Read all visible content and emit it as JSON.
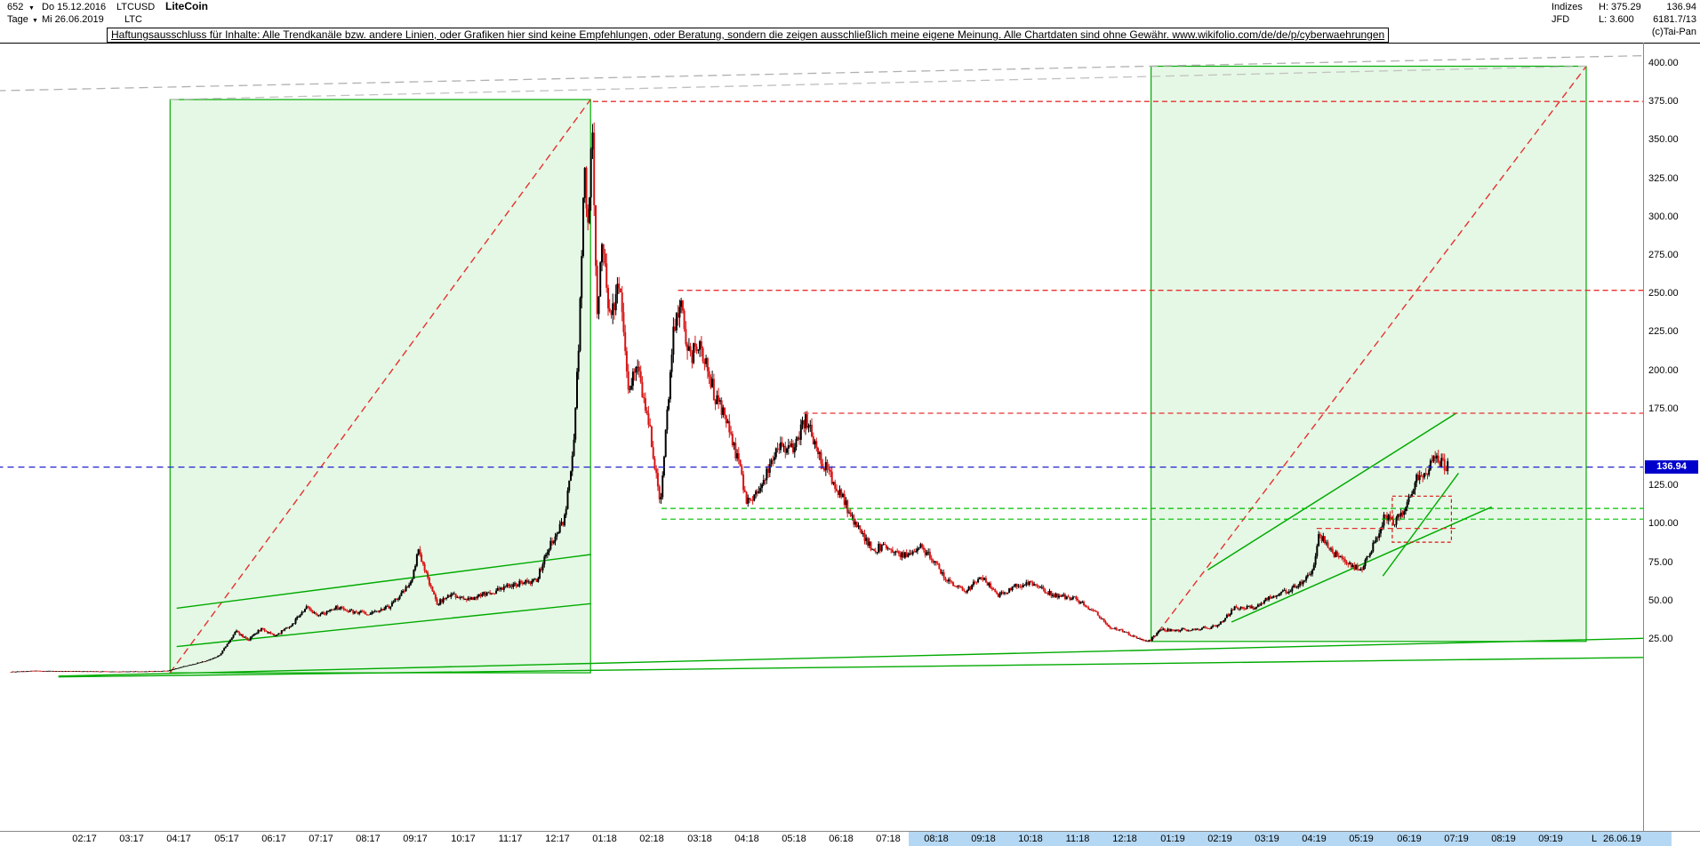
{
  "header": {
    "bar_count": "652",
    "dropdown_icon": "▼",
    "start_date": "Do 15.12.2016",
    "symbol": "LTCUSD",
    "name": "LiteCoin",
    "timeframe": "Tage",
    "end_date": "Mi 26.06.2019",
    "short_symbol": "LTC",
    "right": {
      "indices_label": "Indizes",
      "high_label": "H: 375.29",
      "last_value": "136.94",
      "provider": "JFD",
      "low_label": "L: 3.600",
      "volume_info": "6181.7/13",
      "copyright": "(c)Tai-Pan"
    }
  },
  "disclaimer": "Haftungsausschluss für Inhalte: Alle Trendkanäle bzw. andere Linien, oder Grafiken hier sind keine Empfehlungen, oder Beratung, sondern die zeigen ausschließlich meine eigene Meinung. Alle Chartdaten sind ohne Gewähr.  www.wikifolio.com/de/de/p/cyberwaehrungen",
  "axis": {
    "price_labels": [
      "400.00",
      "375.00",
      "350.00",
      "325.00",
      "300.00",
      "275.00",
      "250.00",
      "225.00",
      "200.00",
      "175.00",
      "125.00",
      "100.00",
      "75.00",
      "50.00",
      "25.00"
    ],
    "last_price_label": "136.94",
    "month_labels": [
      "02:17",
      "03:17",
      "04:17",
      "05:17",
      "06:17",
      "07:17",
      "08:17",
      "09:17",
      "10:17",
      "11:17",
      "12:17",
      "01:18",
      "02:18",
      "03:18",
      "04:18",
      "05:18",
      "06:18",
      "07:18",
      "08:18",
      "09:18",
      "10:18",
      "11:18",
      "12:18",
      "01:19",
      "02:19",
      "03:19",
      "04:19",
      "05:19",
      "06:19",
      "07:19",
      "08:19",
      "09:19"
    ],
    "last_marker": "L",
    "last_date": "26.06.19"
  },
  "chart_data": {
    "type": "candlestick",
    "title": "LiteCoin (LTCUSD) Tageschart",
    "symbol": "LTCUSD",
    "name": "LiteCoin",
    "timeframe": "Tage",
    "x_start": "2016-12-15",
    "x_end": "2019-06-26",
    "months_total": 30.37,
    "last": 136.94,
    "high": 375.29,
    "low": 3.6,
    "ylim": [
      0,
      400
    ],
    "price_gridstep": 25,
    "up_color": "#000000",
    "down_color": "#d81414",
    "anchors": [
      [
        0,
        3.6
      ],
      [
        0.5,
        4.3
      ],
      [
        1,
        4
      ],
      [
        1.6,
        3.9
      ],
      [
        2.2,
        3.8
      ],
      [
        2.8,
        3.9
      ],
      [
        3.3,
        4.2
      ],
      [
        3.7,
        7.5
      ],
      [
        4.1,
        10.5
      ],
      [
        4.4,
        14
      ],
      [
        4.75,
        30
      ],
      [
        5,
        24
      ],
      [
        5.3,
        32
      ],
      [
        5.55,
        27
      ],
      [
        5.9,
        33
      ],
      [
        6.25,
        46
      ],
      [
        6.5,
        40
      ],
      [
        6.85,
        46
      ],
      [
        7.2,
        43
      ],
      [
        7.6,
        41
      ],
      [
        8,
        46
      ],
      [
        8.45,
        62
      ],
      [
        8.6,
        82
      ],
      [
        8.75,
        70
      ],
      [
        9,
        48
      ],
      [
        9.3,
        54
      ],
      [
        9.7,
        51
      ],
      [
        10.2,
        56
      ],
      [
        10.7,
        61
      ],
      [
        11.1,
        63
      ],
      [
        11.45,
        90
      ],
      [
        11.7,
        103
      ],
      [
        11.9,
        152
      ],
      [
        12.02,
        235
      ],
      [
        12.12,
        330
      ],
      [
        12.2,
        290
      ],
      [
        12.28,
        362
      ],
      [
        12.38,
        235
      ],
      [
        12.5,
        282
      ],
      [
        12.65,
        232
      ],
      [
        12.85,
        255
      ],
      [
        13.05,
        188
      ],
      [
        13.25,
        200
      ],
      [
        13.5,
        162
      ],
      [
        13.72,
        112
      ],
      [
        14,
        222
      ],
      [
        14.15,
        244
      ],
      [
        14.35,
        208
      ],
      [
        14.55,
        218
      ],
      [
        14.85,
        186
      ],
      [
        15.2,
        162
      ],
      [
        15.55,
        116
      ],
      [
        15.85,
        122
      ],
      [
        16.2,
        150
      ],
      [
        16.5,
        148
      ],
      [
        16.8,
        168
      ],
      [
        17.05,
        146
      ],
      [
        17.5,
        121
      ],
      [
        17.8,
        103
      ],
      [
        18.2,
        83
      ],
      [
        18.5,
        86
      ],
      [
        18.85,
        79
      ],
      [
        19.2,
        86
      ],
      [
        19.55,
        74
      ],
      [
        19.85,
        61
      ],
      [
        20.2,
        56
      ],
      [
        20.5,
        66
      ],
      [
        20.85,
        53
      ],
      [
        21.2,
        59
      ],
      [
        21.55,
        61
      ],
      [
        22,
        54
      ],
      [
        22.5,
        51
      ],
      [
        22.9,
        43
      ],
      [
        23.2,
        33
      ],
      [
        23.5,
        30
      ],
      [
        23.85,
        25
      ],
      [
        24.05,
        23.5
      ],
      [
        24.3,
        31
      ],
      [
        24.6,
        30.5
      ],
      [
        25,
        31.5
      ],
      [
        25.5,
        33
      ],
      [
        25.85,
        45
      ],
      [
        26.3,
        45.5
      ],
      [
        26.65,
        53
      ],
      [
        27,
        56
      ],
      [
        27.5,
        67
      ],
      [
        27.65,
        93
      ],
      [
        27.95,
        81
      ],
      [
        28.25,
        74
      ],
      [
        28.55,
        70
      ],
      [
        28.85,
        89
      ],
      [
        29.05,
        106
      ],
      [
        29.25,
        101
      ],
      [
        29.5,
        112
      ],
      [
        29.7,
        130
      ],
      [
        29.9,
        134
      ],
      [
        30.1,
        141
      ],
      [
        30.37,
        136.94
      ]
    ],
    "overlays": {
      "boxes": [
        {
          "name": "cycle-box-2017",
          "z": "back",
          "t1": 3.36,
          "p1": 3.0,
          "t2": 12.25,
          "p2": 376.3,
          "color": "#00aa00",
          "fill": "rgba(0,190,0,0.10)",
          "w": 1.2
        },
        {
          "name": "cycle-box-2019",
          "z": "back",
          "t1": 24.1,
          "p1": 23.4,
          "t2": 33.3,
          "p2": 398.0,
          "color": "#00aa00",
          "fill": "rgba(0,190,0,0.10)",
          "w": 1.2
        },
        {
          "name": "consolidation-box-2019",
          "z": "front",
          "t1": 29.2,
          "p1": 88,
          "t2": 30.45,
          "p2": 118,
          "color": "#d81414",
          "fill": "none",
          "dash": "4,3",
          "w": 1.2
        }
      ],
      "lines": [
        {
          "name": "parabolic-trend-2017",
          "z": "back",
          "t1": 3.36,
          "p1": 3.0,
          "t2": 12.25,
          "p2": 376.3,
          "color": "#e83030",
          "dash": "8,5",
          "w": 1.4
        },
        {
          "name": "parabolic-trend-2019",
          "z": "back",
          "t1": 24.1,
          "p1": 23.4,
          "t2": 33.3,
          "p2": 398.0,
          "color": "#e83030",
          "dash": "8,5",
          "w": 1.4
        },
        {
          "name": "projection-line-upper",
          "z": "back",
          "t1": -0.3,
          "p1": 382,
          "t2": 34.7,
          "p2": 405,
          "color": "#b0b0b0",
          "dash": "10,6",
          "w": 1.3
        },
        {
          "name": "projection-line-lower",
          "z": "back",
          "t1": 3.36,
          "p1": 376.3,
          "t2": 33.3,
          "p2": 398,
          "color": "#c0c0c0",
          "dash": "10,6",
          "w": 1.3
        },
        {
          "name": "channel-2017-upper",
          "z": "back",
          "t1": 3.5,
          "p1": 45,
          "t2": 12.25,
          "p2": 80,
          "color": "#00aa00",
          "w": 1.4
        },
        {
          "name": "channel-2017-lower",
          "z": "back",
          "t1": 3.5,
          "p1": 20,
          "t2": 12.25,
          "p2": 48,
          "color": "#00aa00",
          "w": 1.4
        },
        {
          "name": "long-term-support-upper",
          "z": "back",
          "t1": 1.0,
          "p1": 0.8,
          "t2": 34.7,
          "p2": 25.5,
          "color": "#00aa00",
          "w": 1.4
        },
        {
          "name": "long-term-support-lower",
          "z": "back",
          "t1": 1.0,
          "p1": 0.3,
          "t2": 34.7,
          "p2": 13,
          "color": "#00aa00",
          "w": 1.4
        },
        {
          "name": "channel-2019-upper",
          "z": "back",
          "t1": 25.3,
          "p1": 70,
          "t2": 30.55,
          "p2": 172,
          "color": "#00aa00",
          "w": 1.5
        },
        {
          "name": "channel-2019-lower",
          "z": "back",
          "t1": 25.8,
          "p1": 36,
          "t2": 31.3,
          "p2": 111,
          "color": "#00aa00",
          "w": 1.5
        },
        {
          "name": "channel-2019-inner",
          "z": "back",
          "t1": 29.0,
          "p1": 66,
          "t2": 30.6,
          "p2": 133,
          "color": "#00aa00",
          "w": 1.4
        },
        {
          "name": "resistance-375",
          "z": "front",
          "t1": 12.3,
          "p1": 375,
          "t2": 34.7,
          "p2": 375,
          "color": "#e83030",
          "dash": "6,4",
          "w": 1.3
        },
        {
          "name": "resistance-252",
          "z": "front",
          "t1": 14.1,
          "p1": 252,
          "t2": 34.7,
          "p2": 252,
          "color": "#e83030",
          "dash": "6,4",
          "w": 1.3
        },
        {
          "name": "resistance-172",
          "z": "front",
          "t1": 16.75,
          "p1": 172,
          "t2": 34.7,
          "p2": 172,
          "color": "#e83030",
          "dash": "6,4",
          "w": 1.3
        },
        {
          "name": "resistance-97",
          "z": "front",
          "t1": 27.6,
          "p1": 97,
          "t2": 30.55,
          "p2": 97,
          "color": "#e83030",
          "dash": "6,4",
          "w": 1.3
        },
        {
          "name": "support-110",
          "z": "front",
          "t1": 13.75,
          "p1": 110,
          "t2": 34.7,
          "p2": 110,
          "color": "#00c000",
          "dash": "6,4",
          "w": 1.2
        },
        {
          "name": "support-103",
          "z": "front",
          "t1": 13.75,
          "p1": 103,
          "t2": 34.7,
          "p2": 103,
          "color": "#00c000",
          "dash": "6,4",
          "w": 1.2
        },
        {
          "name": "last-price-line",
          "z": "front",
          "t1": -0.3,
          "p1": 136.94,
          "t2": 34.7,
          "p2": 136.94,
          "color": "#2020cc",
          "dash": "7,5",
          "w": 1.3
        }
      ]
    }
  }
}
